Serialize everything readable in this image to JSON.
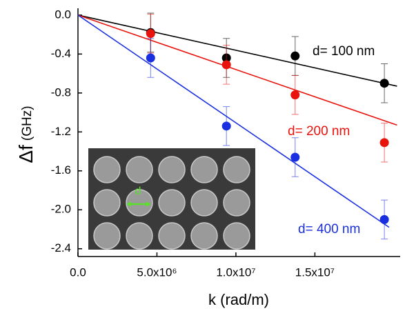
{
  "chart_data": {
    "type": "scatter",
    "xlabel": "k (rad/m)",
    "ylabel": "Δf",
    "ylabel_unit": "(GHz)",
    "xlim": [
      0,
      20400000
    ],
    "ylim": [
      -2.48,
      0.07
    ],
    "xticks": [
      {
        "value": 0,
        "label": "0.0"
      },
      {
        "value": 5000000,
        "label": "5.0x10⁶"
      },
      {
        "value": 10000000,
        "label": "1.0x10⁷"
      },
      {
        "value": 15000000,
        "label": "1.5x10⁷"
      }
    ],
    "yticks": [
      {
        "value": 0,
        "label": "0.0"
      },
      -0.4,
      -0.8,
      -1.2,
      -1.6,
      {
        "value": -2,
        "label": "-2.0"
      },
      -2.4
    ],
    "x": [
      4600000,
      9400000,
      13750000,
      19400000
    ],
    "series": [
      {
        "name": "d= 100 nm",
        "color": "#000000",
        "values": [
          -0.18,
          -0.44,
          -0.42,
          -0.7
        ],
        "errors": [
          0.2,
          0.2,
          0.2,
          0.2
        ],
        "fit_x": [
          0,
          20200000
        ],
        "fit_values": [
          0,
          -0.73
        ]
      },
      {
        "name": "d= 200 nm",
        "color": "#e8130c",
        "values": [
          -0.19,
          -0.51,
          -0.82,
          -1.31
        ],
        "errors": [
          0.2,
          0.2,
          0.2,
          0.2
        ],
        "fit_x": [
          0,
          20200000
        ],
        "fit_values": [
          0,
          -1.13
        ]
      },
      {
        "name": "d= 400 nm",
        "color": "#1a2fe0",
        "values": [
          -0.44,
          -1.14,
          -1.46,
          -2.1
        ],
        "errors": [
          0.2,
          0.2,
          0.2,
          0.2
        ],
        "fit_x": [
          0,
          19700000
        ],
        "fit_values": [
          0,
          -2.18
        ]
      }
    ],
    "inset": {
      "label": "d"
    }
  }
}
